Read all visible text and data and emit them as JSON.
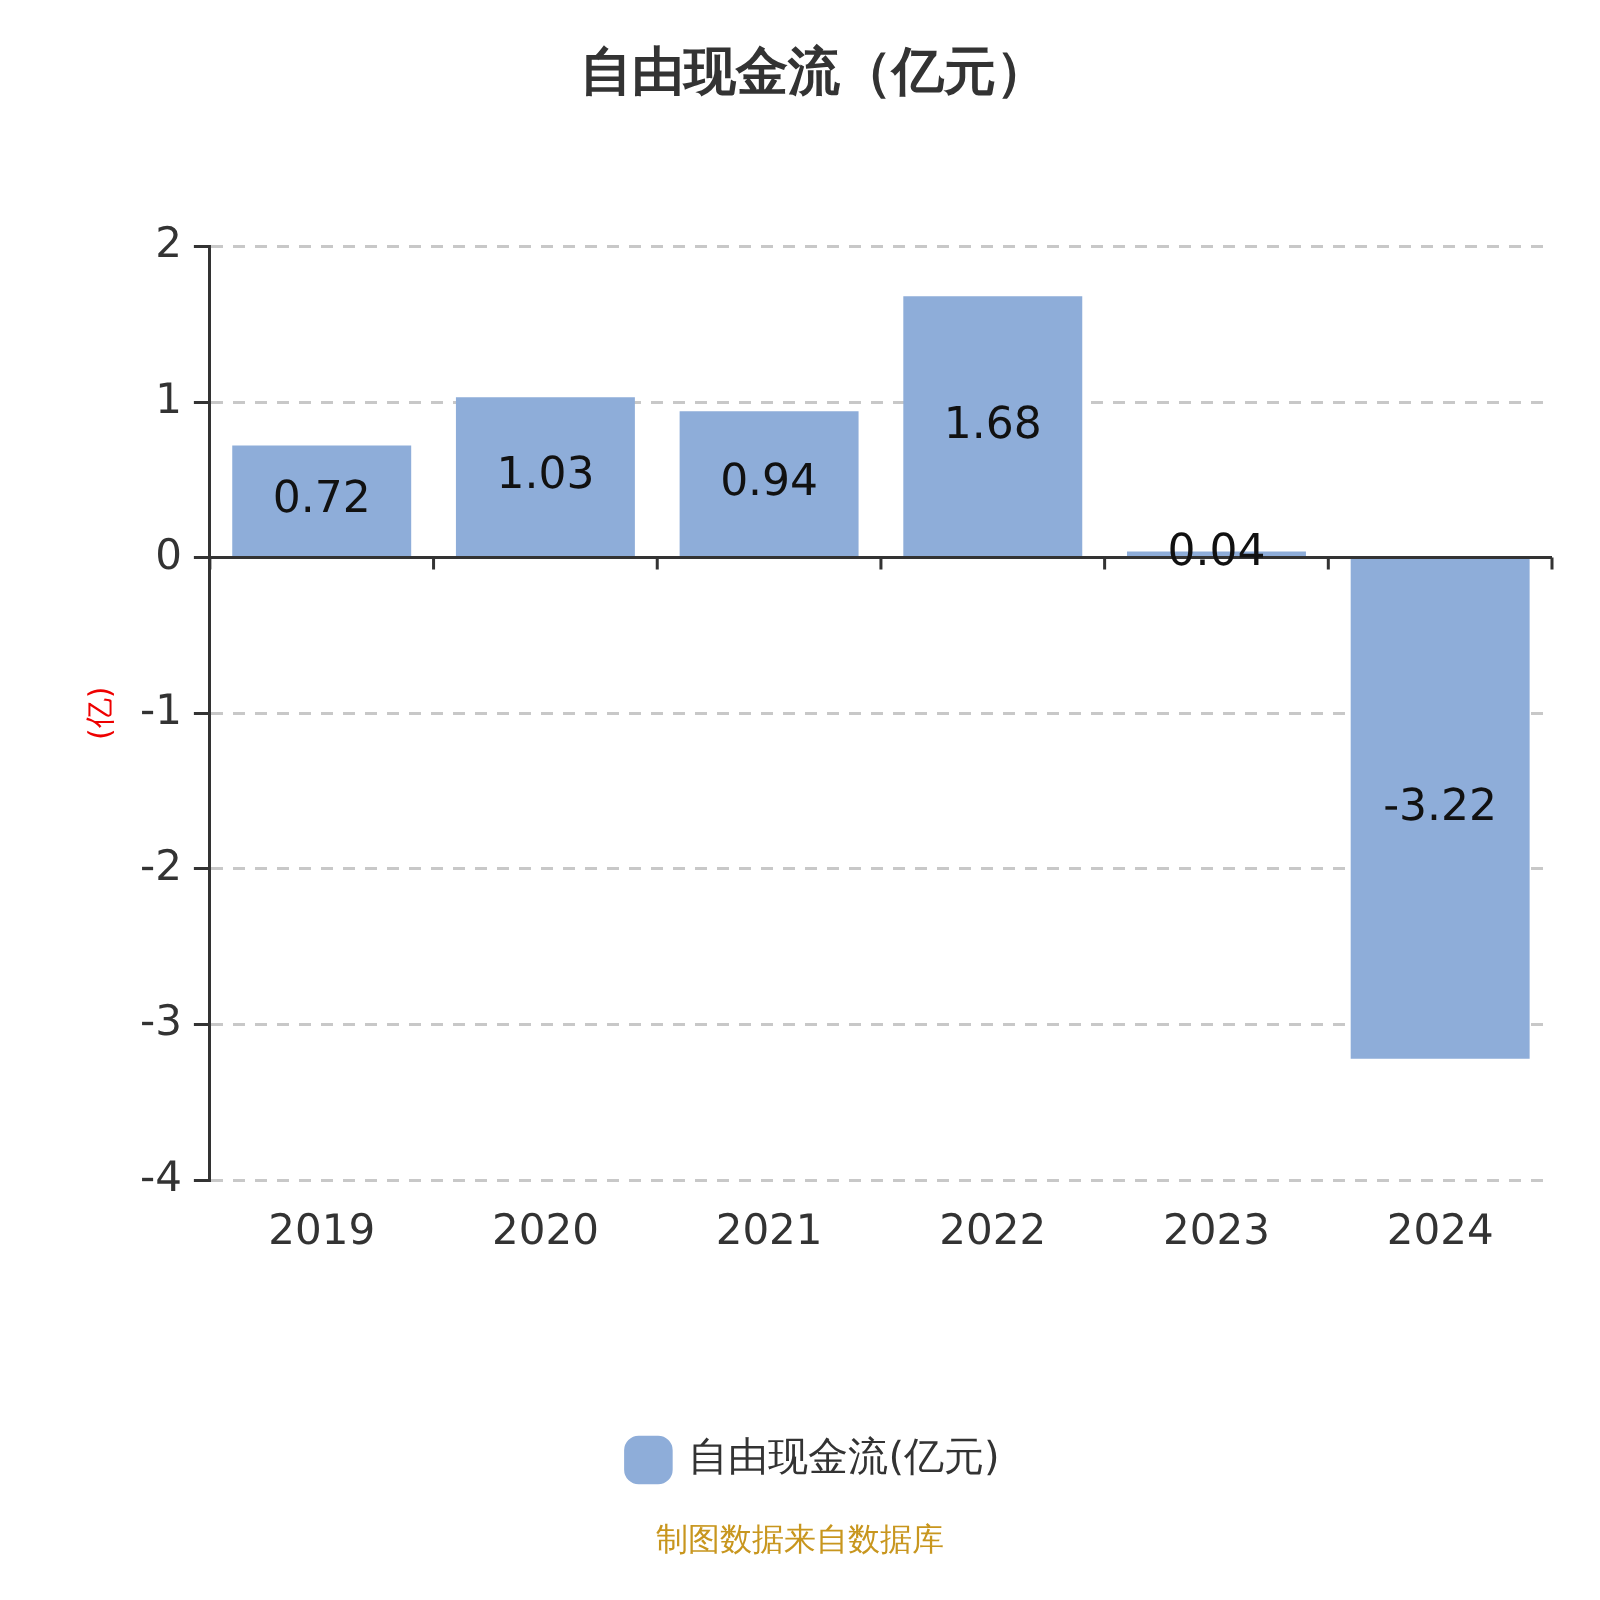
{
  "chart_data": {
    "type": "bar",
    "title": "自由现金流（亿元）",
    "ylabel": "(亿)",
    "categories": [
      "2019",
      "2020",
      "2021",
      "2022",
      "2023",
      "2024"
    ],
    "series": [
      {
        "name": "自由现金流(亿元)",
        "color": "#8eadd9",
        "values": [
          0.72,
          1.03,
          0.94,
          1.68,
          0.04,
          -3.22
        ]
      }
    ],
    "ylim": [
      -4,
      2
    ],
    "yticks": [
      -4,
      -3,
      -2,
      -1,
      0,
      1,
      2
    ],
    "grid": "y",
    "legend": "bottom",
    "data_labels": true,
    "annotations": [
      "制图数据来自数据库"
    ]
  }
}
